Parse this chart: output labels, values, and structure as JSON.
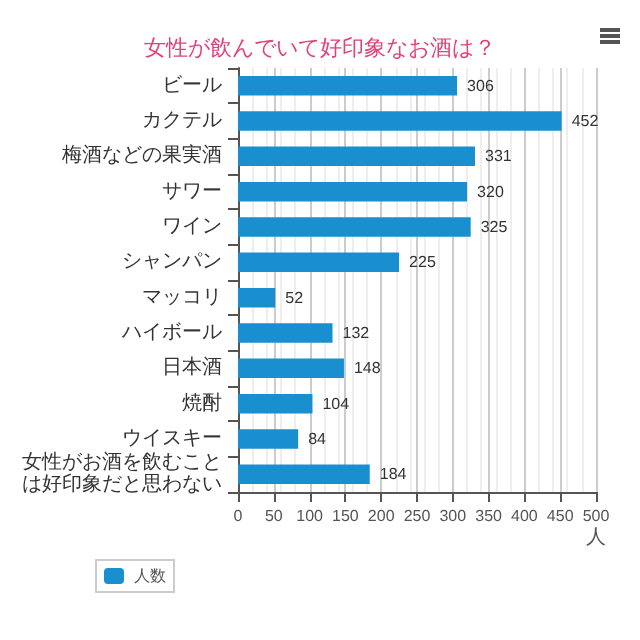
{
  "chart_data": {
    "type": "bar",
    "orientation": "horizontal",
    "title": "女性が飲んでいて好印象なお酒は？",
    "xlabel": "人",
    "categories": [
      "ビール",
      "カクテル",
      "梅酒などの果実酒",
      "サワー",
      "ワイン",
      "シャンパン",
      "マッコリ",
      "ハイボール",
      "日本酒",
      "焼酎",
      "ウイスキー",
      "女性がお酒を飲むことは好印象だと思わない"
    ],
    "series": [
      {
        "name": "人数",
        "color": "#1a8fcf",
        "values": [
          306,
          452,
          331,
          320,
          325,
          225,
          52,
          132,
          148,
          104,
          84,
          184
        ]
      }
    ],
    "xlim": [
      0,
      500
    ],
    "xticks": [
      0,
      50,
      100,
      150,
      200,
      250,
      300,
      350,
      400,
      450,
      500
    ],
    "grid": "x",
    "legend": "bottom left",
    "data_labels": true
  }
}
